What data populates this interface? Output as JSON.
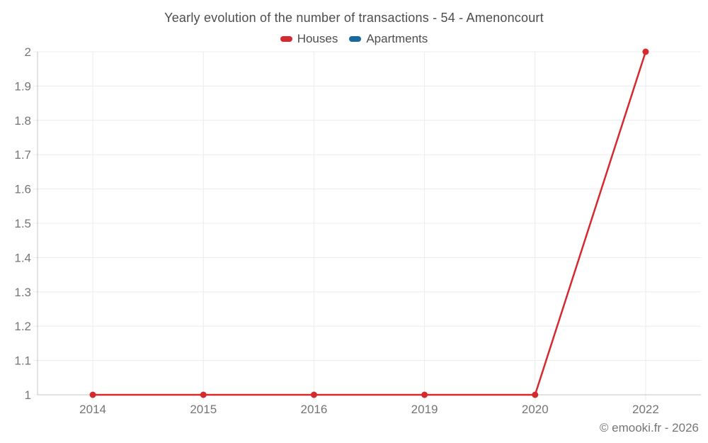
{
  "header": {
    "title": "Yearly evolution of the number of transactions - 54 - Amenoncourt"
  },
  "legend": {
    "items": [
      {
        "label": "Houses",
        "color": "#d5292f"
      },
      {
        "label": "Apartments",
        "color": "#17699e"
      }
    ]
  },
  "chart_data": {
    "type": "line",
    "title": "Yearly evolution of the number of transactions - 54 - Amenoncourt",
    "categories": [
      "2014",
      "2015",
      "2016",
      "2019",
      "2020",
      "2022"
    ],
    "series": [
      {
        "name": "Houses",
        "color": "#d5292f",
        "values": [
          1,
          1,
          1,
          1,
          1,
          2
        ]
      },
      {
        "name": "Apartments",
        "color": "#17699e",
        "values": []
      }
    ],
    "xlabel": "",
    "ylabel": "",
    "ylim": [
      1,
      2
    ],
    "yticks": [
      1,
      1.1,
      1.2,
      1.3,
      1.4,
      1.5,
      1.6,
      1.7,
      1.8,
      1.9,
      2
    ],
    "ytick_labels": [
      "1",
      "1.1",
      "1.2",
      "1.3",
      "1.4",
      "1.5",
      "1.6",
      "1.7",
      "1.8",
      "1.9",
      "2"
    ],
    "grid": true,
    "legend_position": "top"
  },
  "footer": {
    "copyright": "© emooki.fr - 2026"
  },
  "style": {
    "grid_color": "#ececec",
    "axis_color": "#c4c4c4",
    "tick_label_color": "#757575",
    "marker_radius": 4.5,
    "line_width": 2.5
  }
}
